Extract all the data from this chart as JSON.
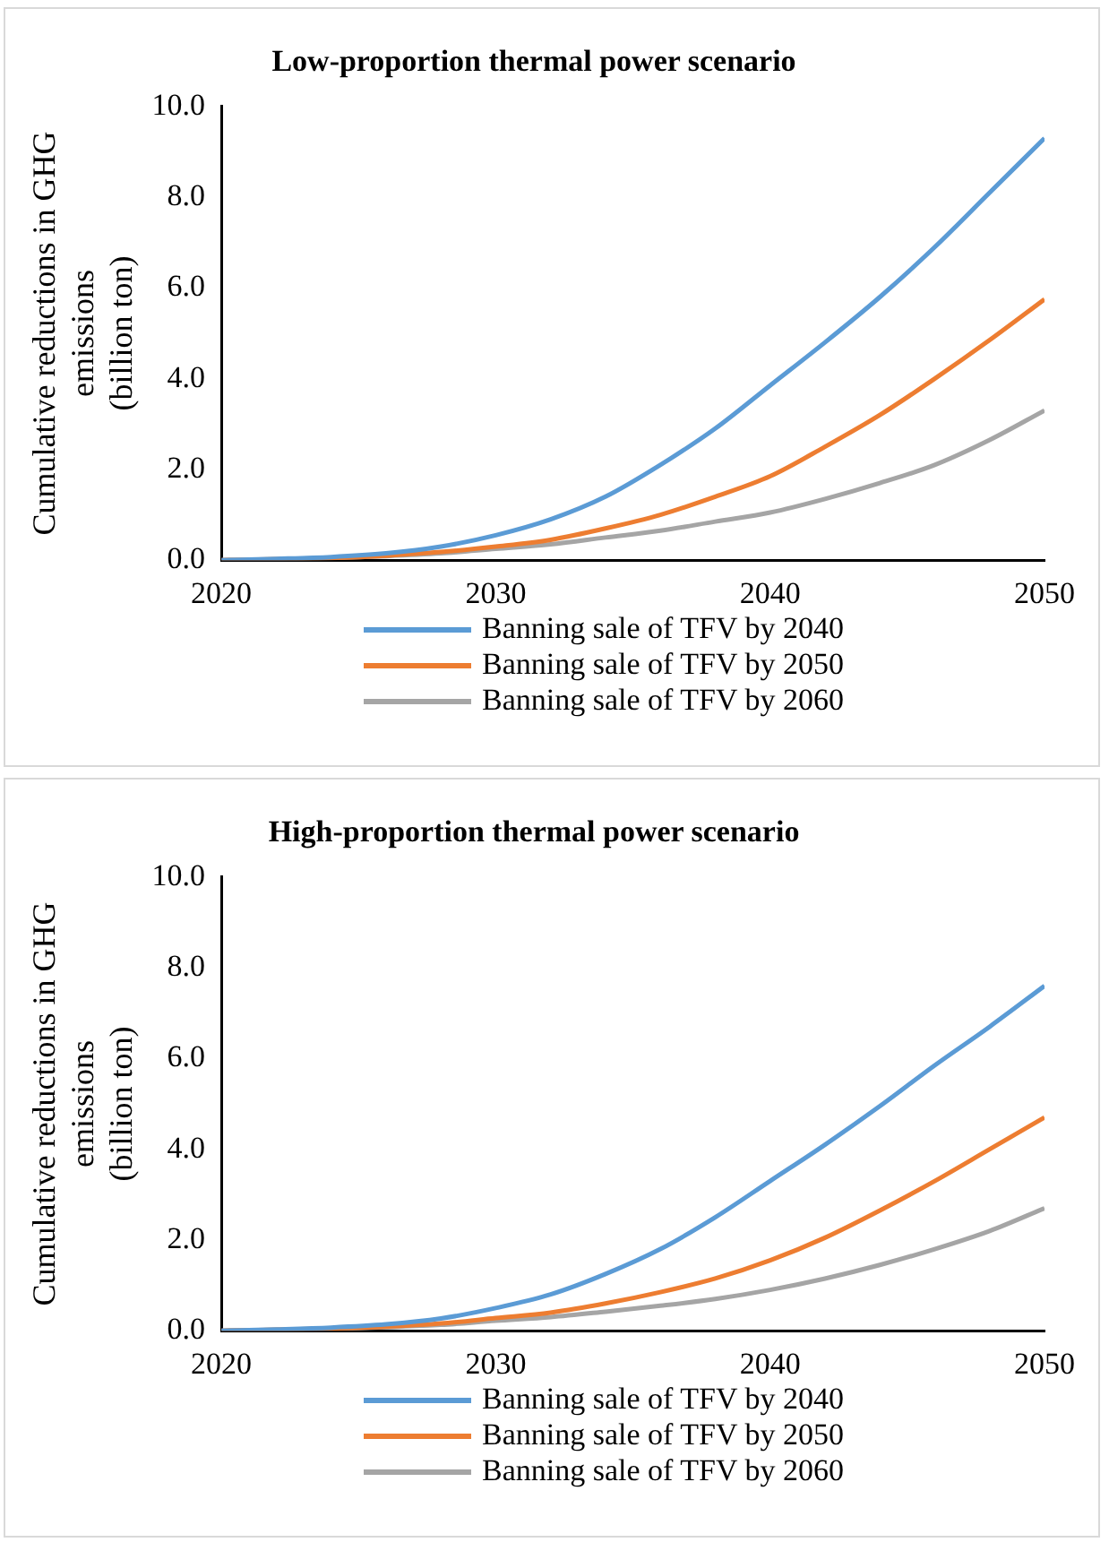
{
  "chart_data": [
    {
      "type": "line",
      "title": "Low-proportion thermal power scenario",
      "ylabel": "Cumulative reductions in GHG\nemissions\n(billion ton)",
      "x": [
        2020,
        2022,
        2024,
        2026,
        2028,
        2030,
        2032,
        2034,
        2036,
        2038,
        2040,
        2042,
        2044,
        2046,
        2048,
        2050
      ],
      "series": [
        {
          "name": "Banning sale of TFV by 2040",
          "color": "#5b9bd5",
          "values": [
            0,
            0.03,
            0.07,
            0.15,
            0.3,
            0.55,
            0.9,
            1.4,
            2.1,
            2.9,
            3.85,
            4.8,
            5.8,
            6.9,
            8.1,
            9.3
          ]
        },
        {
          "name": "Banning sale of TFV by 2050",
          "color": "#ed7d31",
          "values": [
            0,
            null,
            0.05,
            0.1,
            0.18,
            0.3,
            0.45,
            0.7,
            1.0,
            1.4,
            1.85,
            2.5,
            3.2,
            4.0,
            4.85,
            5.75
          ]
        },
        {
          "name": "Banning sale of TFV by 2060",
          "color": "#a5a5a5",
          "values": [
            0,
            0.02,
            0.05,
            0.09,
            0.15,
            0.25,
            0.35,
            0.5,
            0.65,
            0.85,
            1.05,
            1.35,
            1.7,
            2.1,
            2.65,
            3.3
          ]
        }
      ],
      "xlim": [
        2020,
        2050
      ],
      "xticks": [
        2020,
        2030,
        2040,
        2050
      ],
      "ylim": [
        0,
        10
      ],
      "yticks": [
        {
          "value": 0,
          "label": "0.0"
        },
        {
          "value": 2,
          "label": "2.0"
        },
        {
          "value": 4,
          "label": "4.0"
        },
        {
          "value": 6,
          "label": "6.0"
        },
        {
          "value": 8,
          "label": "8.0"
        },
        {
          "value": 10,
          "label": "10.0"
        }
      ],
      "grid": false,
      "legend": "bottom",
      "marker": "none",
      "line_style": "solid"
    },
    {
      "type": "line",
      "title": "High-proportion thermal power scenario",
      "ylabel": "Cumulative reductions in GHG\nemissions\n(billion ton)",
      "x": [
        2020,
        2022,
        2024,
        2026,
        2028,
        2030,
        2032,
        2034,
        2036,
        2038,
        2040,
        2042,
        2044,
        2046,
        2048,
        2050
      ],
      "series": [
        {
          "name": "Banning sale of TFV by 2040",
          "color": "#5b9bd5",
          "values": [
            0,
            0.03,
            0.07,
            0.14,
            0.27,
            0.5,
            0.8,
            1.25,
            1.8,
            2.5,
            3.3,
            4.1,
            4.95,
            5.85,
            6.7,
            7.6
          ]
        },
        {
          "name": "Banning sale of TFV by 2050",
          "color": "#ed7d31",
          "values": [
            0,
            null,
            0.05,
            0.09,
            0.16,
            0.28,
            0.4,
            0.6,
            0.85,
            1.15,
            1.55,
            2.05,
            2.65,
            3.3,
            4.0,
            4.7
          ]
        },
        {
          "name": "Banning sale of TFV by 2060",
          "color": "#a5a5a5",
          "values": [
            0,
            0.02,
            0.04,
            0.08,
            0.13,
            0.22,
            0.3,
            0.42,
            0.55,
            0.7,
            0.9,
            1.15,
            1.45,
            1.8,
            2.2,
            2.7
          ]
        }
      ],
      "xlim": [
        2020,
        2050
      ],
      "xticks": [
        2020,
        2030,
        2040,
        2050
      ],
      "ylim": [
        0,
        10
      ],
      "yticks": [
        {
          "value": 0,
          "label": "0.0"
        },
        {
          "value": 2,
          "label": "2.0"
        },
        {
          "value": 4,
          "label": "4.0"
        },
        {
          "value": 6,
          "label": "6.0"
        },
        {
          "value": 8,
          "label": "8.0"
        },
        {
          "value": 10,
          "label": "10.0"
        }
      ],
      "grid": false,
      "legend": "bottom",
      "marker": "none",
      "line_style": "solid"
    }
  ]
}
